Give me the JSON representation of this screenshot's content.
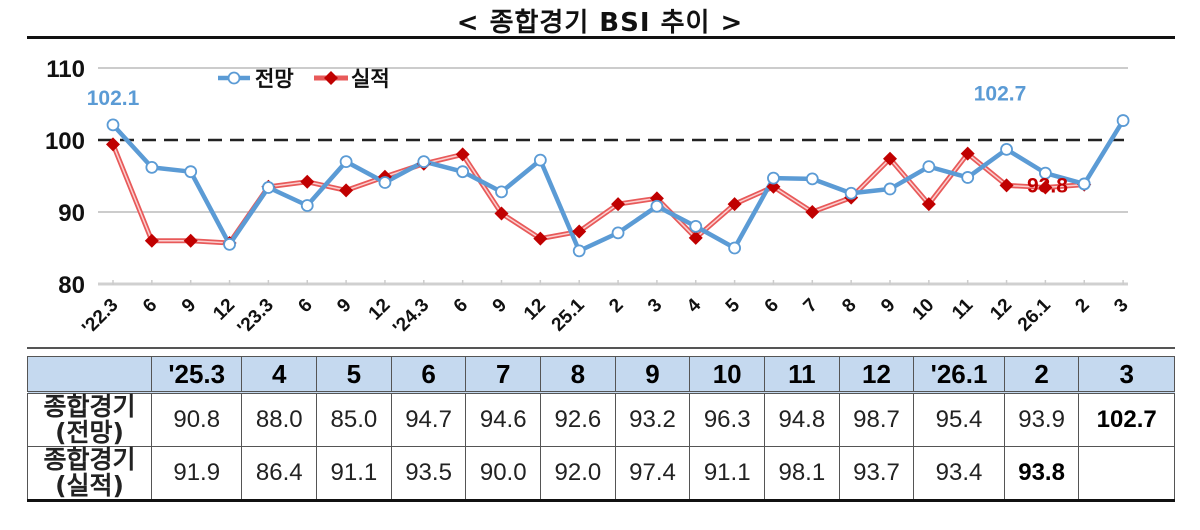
{
  "title": "< 종합경기 BSI 추이 >",
  "legend": {
    "forecast": "전망",
    "actual": "실적"
  },
  "annotations": {
    "first_forecast": "102.1",
    "last_forecast": "102.7",
    "last_actual": "93.8"
  },
  "colors": {
    "forecast": "#5b9bd5",
    "actual": "#c00000",
    "header_bg": "#c5d9ef"
  },
  "chart_data": {
    "type": "line",
    "title": "< 종합경기 BSI 추이 >",
    "xlabel": "",
    "ylabel": "",
    "ylim": [
      80,
      110
    ],
    "yticks": [
      80,
      90,
      100,
      110
    ],
    "reference_line": 100,
    "grid": true,
    "legend_position": "top-left",
    "categories": [
      "'22.3",
      "6",
      "9",
      "12",
      "'23.3",
      "6",
      "9",
      "12",
      "'24.3",
      "6",
      "9",
      "12",
      "25.1",
      "2",
      "3",
      "4",
      "5",
      "6",
      "7",
      "8",
      "9",
      "10",
      "11",
      "12",
      "26.1",
      "2",
      "3"
    ],
    "series": [
      {
        "name": "전망",
        "values": [
          102.1,
          96.2,
          95.6,
          85.5,
          93.4,
          90.9,
          97.0,
          94.1,
          97.0,
          95.6,
          92.8,
          97.2,
          84.6,
          87.1,
          90.8,
          88.0,
          85.0,
          94.7,
          94.6,
          92.6,
          93.2,
          96.3,
          94.8,
          98.7,
          95.4,
          93.9,
          102.7
        ]
      },
      {
        "name": "실적",
        "values": [
          99.4,
          86.0,
          86.0,
          85.7,
          93.5,
          94.2,
          93.0,
          94.9,
          96.7,
          98.0,
          89.8,
          86.3,
          87.3,
          91.1,
          91.9,
          86.4,
          91.1,
          93.5,
          90.0,
          92.0,
          97.4,
          91.1,
          98.1,
          93.7,
          93.4,
          93.8,
          null
        ]
      }
    ]
  },
  "table": {
    "headers": [
      "",
      "'25.3",
      "4",
      "5",
      "6",
      "7",
      "8",
      "9",
      "10",
      "11",
      "12",
      "'26.1",
      "2",
      "3"
    ],
    "rows": [
      {
        "label1": "종합경기",
        "label2": "(전망)",
        "values": [
          "90.8",
          "88.0",
          "85.0",
          "94.7",
          "94.6",
          "92.6",
          "93.2",
          "96.3",
          "94.8",
          "98.7",
          "95.4",
          "93.9",
          "102.7"
        ]
      },
      {
        "label1": "종합경기",
        "label2": "(실적)",
        "values": [
          "91.9",
          "86.4",
          "91.1",
          "93.5",
          "90.0",
          "92.0",
          "97.4",
          "91.1",
          "98.1",
          "93.7",
          "93.4",
          "93.8",
          ""
        ]
      }
    ]
  }
}
